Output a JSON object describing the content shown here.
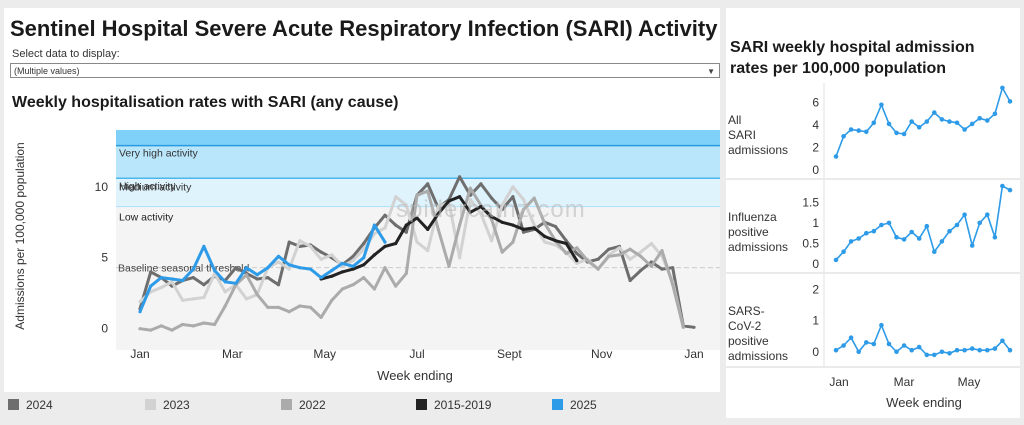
{
  "page": {
    "title": "Sentinel Hospital Severe Acute Respiratory Infection (SARI) Activity",
    "select_label": "Select data to display:",
    "select_value": "(Multiple values)",
    "watermark": "spidercatnz.com"
  },
  "main_chart": {
    "title": "Weekly hospitalisation rates with SARI (any cause)",
    "ylabel": "Admissions per 100,000 population",
    "xlabel": "Week ending",
    "x_ticks": [
      "Jan",
      "Mar",
      "May",
      "Jul",
      "Sept",
      "Nov",
      "Jan"
    ],
    "y_ticks": [
      "0",
      "5",
      "10"
    ],
    "threshold_label": "Baseline seasonal threshold",
    "bands": [
      "Very high activity",
      "High activity",
      "Medium activity",
      "Low activity"
    ]
  },
  "right_panel": {
    "title": "SARI weekly hospital admission rates per 100,000 population",
    "xlabel": "Week ending",
    "x_ticks": [
      "Jan",
      "Mar",
      "May"
    ],
    "rows": [
      {
        "label": "All SARI admissions",
        "y_ticks": [
          "0",
          "2",
          "4",
          "6"
        ]
      },
      {
        "label": "Influenza positive admissions",
        "y_ticks": [
          "0",
          "0.5",
          "1",
          "1.5"
        ]
      },
      {
        "label": "SARS-CoV-2 positive admissions",
        "y_ticks": [
          "0",
          "1",
          "2"
        ]
      }
    ]
  },
  "legend": [
    {
      "label": "2024",
      "color": "#6e6e6e"
    },
    {
      "label": "2023",
      "color": "#d2d2d2"
    },
    {
      "label": "2022",
      "color": "#ababab"
    },
    {
      "label": "2015-2019",
      "color": "#222222"
    },
    {
      "label": "2025",
      "color": "#2e9be8"
    }
  ],
  "chart_data": [
    {
      "type": "line",
      "title": "Weekly hospitalisation rates with SARI (any cause)",
      "xlabel": "Week ending",
      "ylabel": "Admissions per 100,000 population",
      "x_unit": "week",
      "ylim": [
        -1.5,
        14
      ],
      "thresholds": {
        "baseline": 4.3,
        "medium": 8.6,
        "high": 10.6,
        "very_high": 12.9
      },
      "series": [
        {
          "name": "2024",
          "color": "#6e6e6e",
          "start_week": 1,
          "values": [
            1.4,
            4.0,
            3.6,
            3.0,
            3.4,
            3.6,
            3.1,
            3.7,
            3.4,
            4.3,
            3.9,
            3.5,
            3.6,
            3.1,
            6.1,
            5.8,
            5.9,
            5.4,
            5.0,
            4.5,
            5.1,
            6.0,
            7.1,
            8.0,
            7.3,
            6.8,
            9.4,
            10.2,
            8.5,
            9.1,
            10.7,
            9.4,
            10.2,
            9.2,
            8.4,
            9.3,
            6.8,
            7.0,
            7.5,
            7.2,
            6.2,
            5.3,
            4.7,
            4.9,
            5.6,
            5.8,
            3.4,
            4.1,
            4.7,
            4.2,
            4.3,
            0.2,
            0.1
          ]
        },
        {
          "name": "2023",
          "color": "#d2d2d2",
          "start_week": 1,
          "values": [
            1.9,
            2.6,
            2.9,
            3.3,
            2.0,
            2.1,
            2.2,
            3.9,
            2.6,
            3.1,
            2.1,
            2.4,
            4.3,
            4.7,
            4.2,
            6.2,
            5.8,
            4.9,
            5.2,
            4.4,
            4.8,
            5.6,
            6.7,
            7.1,
            9.3,
            8.7,
            6.1,
            5.5,
            8.6,
            8.9,
            5.0,
            9.1,
            8.1,
            6.2,
            8.7,
            10.0,
            9.1,
            7.3,
            6.1,
            5.9,
            5.4,
            4.6,
            4.9,
            4.2,
            5.2,
            5.7,
            4.9,
            5.4,
            6.0,
            5.1,
            3.3,
            0.1
          ]
        },
        {
          "name": "2022",
          "color": "#ababab",
          "start_week": 1,
          "values": [
            0.0,
            -0.1,
            0.2,
            -0.1,
            0.3,
            0.2,
            0.4,
            0.3,
            1.6,
            3.1,
            3.8,
            2.4,
            1.5,
            1.5,
            1.2,
            1.6,
            1.5,
            0.8,
            2.0,
            2.8,
            3.1,
            3.6,
            2.8,
            4.3,
            3.0,
            3.9,
            9.4,
            9.7,
            7.0,
            4.4,
            7.3,
            9.9,
            8.7,
            7.7,
            5.4,
            6.1,
            8.4,
            9.2,
            7.4,
            6.2,
            5.3,
            5.7,
            4.8,
            4.2,
            5.1,
            5.2,
            5.6,
            5.1,
            4.4,
            5.5,
            3.1,
            0.1
          ]
        },
        {
          "name": "2015-2019",
          "color": "#222222",
          "start_week": 18,
          "values": [
            3.5,
            3.7,
            4.0,
            4.2,
            4.5,
            5.2,
            5.8,
            6.0,
            7.3,
            7.8,
            7.0,
            8.1,
            9.0,
            9.3,
            8.2,
            8.6,
            7.9,
            7.5,
            7.3,
            7.0,
            7.1,
            6.5,
            6.2,
            6.0,
            4.8
          ]
        },
        {
          "name": "2025",
          "color": "#2e9be8",
          "start_week": 1,
          "values": [
            1.2,
            3.0,
            3.6,
            3.5,
            3.4,
            4.2,
            5.8,
            4.1,
            3.3,
            3.2,
            4.3,
            3.8,
            4.3,
            5.1,
            4.5,
            4.3,
            4.2,
            3.6,
            4.1,
            4.6,
            4.4,
            5.0,
            7.3,
            6.1
          ]
        }
      ]
    },
    {
      "type": "line",
      "title": "All SARI admissions",
      "x": [
        "2025-01-05",
        "2025-01-12",
        "2025-01-19",
        "2025-01-26",
        "2025-02-02",
        "2025-02-09",
        "2025-02-16",
        "2025-02-23",
        "2025-03-02",
        "2025-03-09",
        "2025-03-16",
        "2025-03-23",
        "2025-03-30",
        "2025-04-06",
        "2025-04-13",
        "2025-04-20",
        "2025-04-27",
        "2025-05-04",
        "2025-05-11",
        "2025-05-18",
        "2025-05-25",
        "2025-06-01",
        "2025-06-08",
        "2025-06-15"
      ],
      "ylim": [
        0,
        7.2
      ],
      "series": [
        {
          "values": [
            1.2,
            3.0,
            3.6,
            3.5,
            3.4,
            4.2,
            5.8,
            4.1,
            3.3,
            3.2,
            4.3,
            3.8,
            4.3,
            5.1,
            4.5,
            4.3,
            4.2,
            3.6,
            4.1,
            4.6,
            4.4,
            5.0,
            7.3,
            6.1
          ],
          "color": "#2e9be8"
        }
      ]
    },
    {
      "type": "line",
      "title": "Influenza positive admissions",
      "x": [
        "2025-01-05",
        "2025-01-12",
        "2025-01-19",
        "2025-01-26",
        "2025-02-02",
        "2025-02-09",
        "2025-02-16",
        "2025-02-23",
        "2025-03-02",
        "2025-03-09",
        "2025-03-16",
        "2025-03-23",
        "2025-03-30",
        "2025-04-06",
        "2025-04-13",
        "2025-04-20",
        "2025-04-27",
        "2025-05-04",
        "2025-05-11",
        "2025-05-18",
        "2025-05-25",
        "2025-06-01",
        "2025-06-08",
        "2025-06-15"
      ],
      "ylim": [
        0,
        1.9
      ],
      "series": [
        {
          "values": [
            0.1,
            0.3,
            0.55,
            0.62,
            0.75,
            0.8,
            0.95,
            1.0,
            0.65,
            0.6,
            0.78,
            0.62,
            0.92,
            0.3,
            0.55,
            0.8,
            0.95,
            1.2,
            0.45,
            1.0,
            1.2,
            0.65,
            1.9,
            1.8
          ],
          "color": "#2e9be8"
        }
      ]
    },
    {
      "type": "line",
      "title": "SARS-CoV-2 positive admissions",
      "x": [
        "2025-01-05",
        "2025-01-12",
        "2025-01-19",
        "2025-01-26",
        "2025-02-02",
        "2025-02-09",
        "2025-02-16",
        "2025-02-23",
        "2025-03-02",
        "2025-03-09",
        "2025-03-16",
        "2025-03-23",
        "2025-03-30",
        "2025-04-06",
        "2025-04-13",
        "2025-04-20",
        "2025-04-27",
        "2025-05-04",
        "2025-05-11",
        "2025-05-18",
        "2025-05-25",
        "2025-06-01",
        "2025-06-08",
        "2025-06-15"
      ],
      "ylim": [
        -0.2,
        2.3
      ],
      "series": [
        {
          "values": [
            0.05,
            0.2,
            0.45,
            0.0,
            0.3,
            0.25,
            0.85,
            0.25,
            0.0,
            0.2,
            0.05,
            0.15,
            -0.1,
            -0.1,
            0.0,
            -0.05,
            0.05,
            0.05,
            0.1,
            0.05,
            0.05,
            0.1,
            0.35,
            0.05
          ],
          "color": "#2e9be8"
        }
      ]
    }
  ]
}
